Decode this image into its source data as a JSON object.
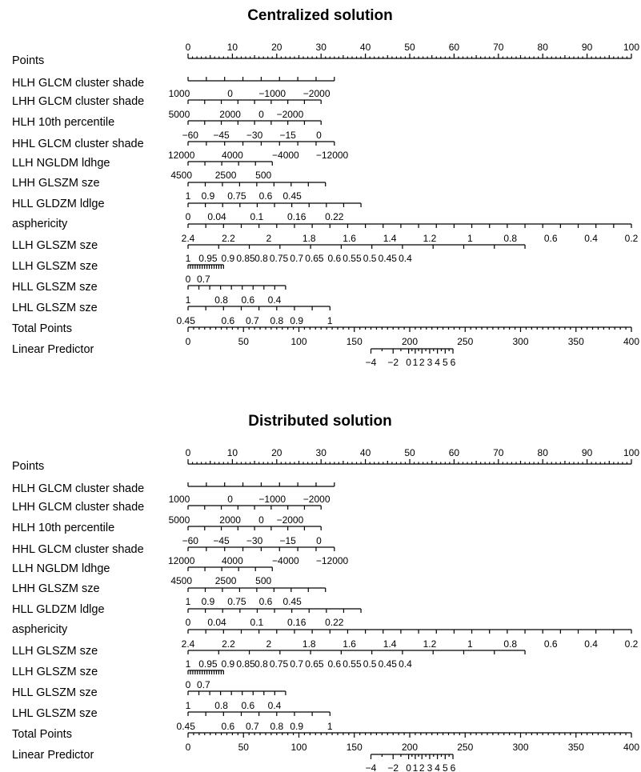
{
  "chart_data": [
    {
      "type": "nomogram",
      "title": "Centralized solution",
      "rows": [
        {
          "label": "Points",
          "axis": {
            "values": [
              "0",
              "10",
              "20",
              "30",
              "40",
              "50",
              "60",
              "70",
              "80",
              "90",
              "100"
            ],
            "points": [
              0,
              10,
              20,
              30,
              40,
              50,
              60,
              70,
              80,
              90,
              100
            ]
          }
        },
        {
          "label": "HLH GLCM cluster shade",
          "axis": {
            "values": [],
            "points": []
          }
        },
        {
          "label": "LHH GLCM cluster shade",
          "axis": {
            "values": [
              "1000",
              "0",
              "−1000",
              "−2000"
            ],
            "points": [
              -2,
              9.5,
              19,
              29
            ]
          }
        },
        {
          "label": "HLH 10th percentile",
          "axis": {
            "values": [
              "5000",
              "2000",
              "0",
              "−2000"
            ],
            "points": [
              -2,
              9.5,
              16.5,
              23
            ]
          }
        },
        {
          "label": "HHL GLCM cluster shade",
          "axis": {
            "values": [
              "−60",
              "−45",
              "−30",
              "−15",
              "0"
            ],
            "points": [
              0.5,
              7.5,
              15,
              22.5,
              29.5
            ]
          }
        },
        {
          "label": "LLH NGLDM ldhge",
          "axis": {
            "values": [
              "12000",
              "4000",
              "−4000",
              "−12000"
            ],
            "points": [
              -1.5,
              10,
              22,
              32.5
            ]
          }
        },
        {
          "label": "LHH GLSZM sze",
          "axis": {
            "values": [
              "4500",
              "2500",
              "500"
            ],
            "points": [
              -1.5,
              8.5,
              17
            ]
          }
        },
        {
          "label": "HLL GLDZM ldlge",
          "axis": {
            "values": [
              "1",
              "0.9",
              "0.75",
              "0.6",
              "0.45"
            ],
            "points": [
              0,
              4.5,
              11,
              17.5,
              23.5
            ]
          }
        },
        {
          "label": "asphericity",
          "axis": {
            "values": [
              "0",
              "0.04",
              "0.1",
              "0.16",
              "0.22"
            ],
            "points": [
              0,
              6.5,
              15.5,
              24.5,
              33
            ]
          }
        },
        {
          "label": "LLH GLSZM sze",
          "axis": {
            "values": [
              "2.4",
              "2.2",
              "2",
              "1.8",
              "1.6",
              "1.4",
              "1.2",
              "1",
              "0.8",
              "0.6",
              "0.4",
              "0.2"
            ],
            "points": [
              0,
              9.1,
              18.2,
              27.3,
              36.4,
              45.5,
              54.5,
              63.6,
              72.7,
              81.8,
              90.9,
              100
            ]
          }
        },
        {
          "label": "LLH GLSZM sze",
          "axis": {
            "values": [
              "1",
              "0.95",
              "0.9",
              "0.85",
              "0.8",
              "0.75",
              "0.7",
              "0.65",
              "0.6",
              "0.55",
              "0.5",
              "0.45",
              "0.4"
            ],
            "points": [
              0,
              4.5,
              9,
              13,
              16.5,
              20.5,
              24.5,
              28.5,
              33,
              37,
              41,
              45,
              49
            ]
          }
        },
        {
          "label": "HLL GLSZM sze",
          "axis": {
            "values": [
              "0",
              "0.7"
            ],
            "points": [
              0,
              3.5
            ]
          }
        },
        {
          "label": "LHL GLSZM sze",
          "axis": {
            "values": [
              "1",
              "0.8",
              "0.6",
              "0.4"
            ],
            "points": [
              0,
              7.5,
              13.5,
              19.5
            ]
          }
        },
        {
          "label": "Total Points",
          "axis": {
            "values": [
              "0.45",
              "0.6",
              "0.7",
              "0.8",
              "0.9",
              "1"
            ],
            "points": [
              -0.5,
              9,
              14.5,
              20,
              24.5,
              32
            ]
          }
        },
        {
          "label": "Linear Predictor",
          "axis": {
            "values": [
              "0",
              "50",
              "100",
              "150",
              "200",
              "250",
              "300",
              "350",
              "400"
            ],
            "points": [
              0,
              12.5,
              25,
              37.5,
              50,
              62.5,
              75,
              87.5,
              100
            ]
          }
        }
      ],
      "lp_axis": {
        "values": [
          "−4",
          "−2",
          "0",
          "1",
          "2",
          "3",
          "4",
          "5",
          "6"
        ],
        "total_points": [
          165,
          185,
          199,
          205,
          211,
          218,
          225,
          232,
          239
        ]
      }
    },
    {
      "type": "nomogram",
      "title": "Distributed solution",
      "rows": [
        {
          "label": "Points",
          "axis": {
            "values": [
              "0",
              "10",
              "20",
              "30",
              "40",
              "50",
              "60",
              "70",
              "80",
              "90",
              "100"
            ],
            "points": [
              0,
              10,
              20,
              30,
              40,
              50,
              60,
              70,
              80,
              90,
              100
            ]
          }
        },
        {
          "label": "HLH GLCM cluster shade",
          "axis": {
            "values": [],
            "points": []
          }
        },
        {
          "label": "LHH GLCM cluster shade",
          "axis": {
            "values": [
              "1000",
              "0",
              "−1000",
              "−2000"
            ],
            "points": [
              -2,
              9.5,
              19,
              29
            ]
          }
        },
        {
          "label": "HLH 10th percentile",
          "axis": {
            "values": [
              "5000",
              "2000",
              "0",
              "−2000"
            ],
            "points": [
              -2,
              9.5,
              16.5,
              23
            ]
          }
        },
        {
          "label": "HHL GLCM cluster shade",
          "axis": {
            "values": [
              "−60",
              "−45",
              "−30",
              "−15",
              "0"
            ],
            "points": [
              0.5,
              7.5,
              15,
              22.5,
              29.5
            ]
          }
        },
        {
          "label": "LLH NGLDM ldhge",
          "axis": {
            "values": [
              "12000",
              "4000",
              "−4000",
              "−12000"
            ],
            "points": [
              -1.5,
              10,
              22,
              32.5
            ]
          }
        },
        {
          "label": "LHH GLSZM sze",
          "axis": {
            "values": [
              "4500",
              "2500",
              "500"
            ],
            "points": [
              -1.5,
              8.5,
              17
            ]
          }
        },
        {
          "label": "HLL GLDZM ldlge",
          "axis": {
            "values": [
              "1",
              "0.9",
              "0.75",
              "0.6",
              "0.45"
            ],
            "points": [
              0,
              4.5,
              11,
              17.5,
              23.5
            ]
          }
        },
        {
          "label": "asphericity",
          "axis": {
            "values": [
              "0",
              "0.04",
              "0.1",
              "0.16",
              "0.22"
            ],
            "points": [
              0,
              6.5,
              15.5,
              24.5,
              33
            ]
          }
        },
        {
          "label": "LLH GLSZM sze",
          "axis": {
            "values": [
              "2.4",
              "2.2",
              "2",
              "1.8",
              "1.6",
              "1.4",
              "1.2",
              "1",
              "0.8",
              "0.6",
              "0.4",
              "0.2"
            ],
            "points": [
              0,
              9.1,
              18.2,
              27.3,
              36.4,
              45.5,
              54.5,
              63.6,
              72.7,
              81.8,
              90.9,
              100
            ]
          }
        },
        {
          "label": "LLH GLSZM sze",
          "axis": {
            "values": [
              "1",
              "0.95",
              "0.9",
              "0.85",
              "0.8",
              "0.75",
              "0.7",
              "0.65",
              "0.6",
              "0.55",
              "0.5",
              "0.45",
              "0.4"
            ],
            "points": [
              0,
              4.5,
              9,
              13,
              16.5,
              20.5,
              24.5,
              28.5,
              33,
              37,
              41,
              45,
              49
            ]
          }
        },
        {
          "label": "HLL GLSZM sze",
          "axis": {
            "values": [
              "0",
              "0.7"
            ],
            "points": [
              0,
              3.5
            ]
          }
        },
        {
          "label": "LHL GLSZM sze",
          "axis": {
            "values": [
              "1",
              "0.8",
              "0.6",
              "0.4"
            ],
            "points": [
              0,
              7.5,
              13.5,
              19.5
            ]
          }
        },
        {
          "label": "Total Points",
          "axis": {
            "values": [
              "0.45",
              "0.6",
              "0.7",
              "0.8",
              "0.9",
              "1"
            ],
            "points": [
              -0.5,
              9,
              14.5,
              20,
              24.5,
              32
            ]
          }
        },
        {
          "label": "Linear Predictor",
          "axis": {
            "values": [
              "0",
              "50",
              "100",
              "150",
              "200",
              "250",
              "300",
              "350",
              "400"
            ],
            "points": [
              0,
              12.5,
              25,
              37.5,
              50,
              62.5,
              75,
              87.5,
              100
            ]
          }
        }
      ],
      "lp_axis": {
        "values": [
          "−4",
          "−2",
          "0",
          "1",
          "2",
          "3",
          "4",
          "5",
          "6"
        ],
        "total_points": [
          165,
          185,
          199,
          205,
          211,
          218,
          225,
          232,
          239
        ]
      }
    }
  ]
}
